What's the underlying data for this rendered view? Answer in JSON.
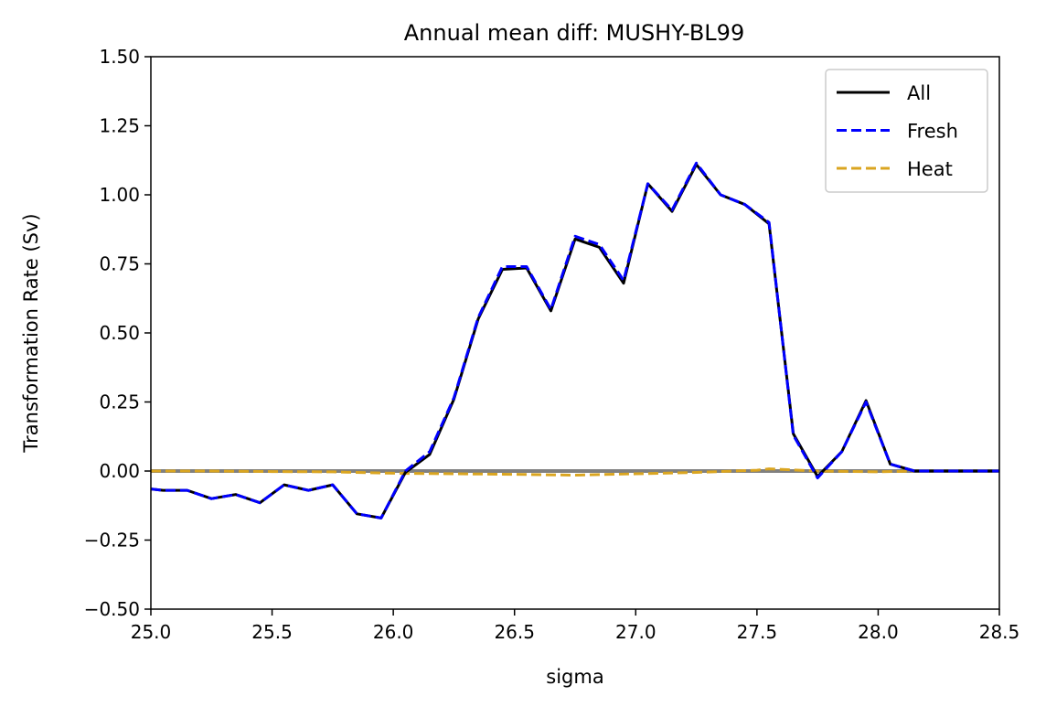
{
  "chart_data": {
    "type": "line",
    "title": "Annual mean diff: MUSHY-BL99",
    "xlabel": "sigma",
    "ylabel": "Transformation Rate (Sv)",
    "xlim": [
      25.0,
      28.5
    ],
    "ylim": [
      -0.5,
      1.5
    ],
    "xticks": [
      "25.0",
      "25.5",
      "26.0",
      "26.5",
      "27.0",
      "27.5",
      "28.0",
      "28.5"
    ],
    "yticks": [
      "−0.50",
      "−0.25",
      "0.00",
      "0.25",
      "0.50",
      "0.75",
      "1.00",
      "1.25",
      "1.50"
    ],
    "legend_position": "top-right",
    "zero_line_color": "#808080",
    "series": [
      {
        "name": "All",
        "color": "#000000",
        "style": "solid",
        "x": [
          25.0,
          25.05,
          25.15,
          25.25,
          25.35,
          25.45,
          25.55,
          25.65,
          25.75,
          25.85,
          25.95,
          26.05,
          26.15,
          26.25,
          26.35,
          26.45,
          26.55,
          26.65,
          26.75,
          26.85,
          26.95,
          27.05,
          27.15,
          27.25,
          27.35,
          27.45,
          27.55,
          27.65,
          27.75,
          27.85,
          27.95,
          28.05,
          28.15,
          28.5
        ],
        "y": [
          -0.065,
          -0.07,
          -0.07,
          -0.1,
          -0.085,
          -0.115,
          -0.05,
          -0.07,
          -0.05,
          -0.155,
          -0.17,
          -0.005,
          0.06,
          0.26,
          0.55,
          0.73,
          0.735,
          0.58,
          0.84,
          0.81,
          0.68,
          1.04,
          0.94,
          1.11,
          1.0,
          0.965,
          0.895,
          0.135,
          -0.02,
          0.07,
          0.255,
          0.025,
          0.0,
          0.0
        ]
      },
      {
        "name": "Fresh",
        "color": "#0000ff",
        "style": "dashed",
        "x": [
          25.0,
          25.05,
          25.15,
          25.25,
          25.35,
          25.45,
          25.55,
          25.65,
          25.75,
          25.85,
          25.95,
          26.05,
          26.15,
          26.25,
          26.35,
          26.45,
          26.55,
          26.65,
          26.75,
          26.85,
          26.95,
          27.05,
          27.15,
          27.25,
          27.35,
          27.45,
          27.55,
          27.65,
          27.75,
          27.85,
          27.95,
          28.05,
          28.15,
          28.5
        ],
        "y": [
          -0.065,
          -0.07,
          -0.07,
          -0.1,
          -0.085,
          -0.115,
          -0.05,
          -0.07,
          -0.05,
          -0.155,
          -0.17,
          0.0,
          0.07,
          0.265,
          0.555,
          0.74,
          0.74,
          0.585,
          0.85,
          0.82,
          0.69,
          1.04,
          0.945,
          1.115,
          1.0,
          0.965,
          0.9,
          0.13,
          -0.025,
          0.07,
          0.25,
          0.025,
          0.0,
          0.0
        ]
      },
      {
        "name": "Heat",
        "color": "#daa520",
        "style": "dashed",
        "x": [
          25.0,
          25.25,
          25.5,
          25.75,
          26.0,
          26.25,
          26.5,
          26.75,
          27.0,
          27.25,
          27.5,
          27.55,
          27.65,
          27.75,
          28.0,
          28.15,
          28.5
        ],
        "y": [
          0.0,
          0.0,
          -0.002,
          -0.003,
          -0.008,
          -0.01,
          -0.012,
          -0.015,
          -0.01,
          -0.005,
          0.003,
          0.008,
          0.004,
          0.0,
          -0.003,
          0.0,
          0.0
        ]
      }
    ]
  }
}
